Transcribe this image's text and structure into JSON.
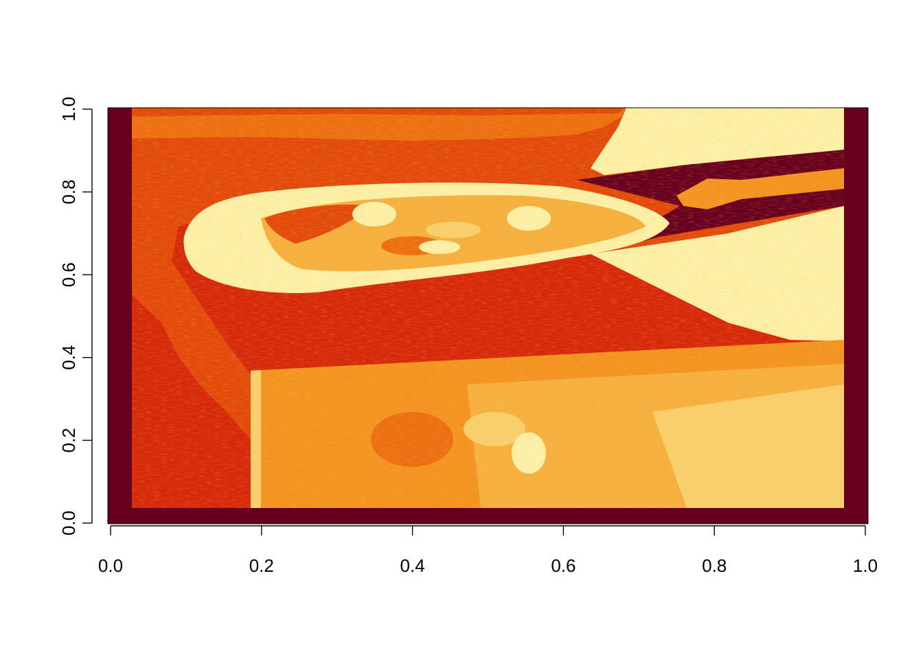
{
  "chart_data": {
    "type": "heatmap",
    "title": "",
    "xlabel": "",
    "ylabel": "",
    "xlim": [
      0,
      1
    ],
    "ylim": [
      0,
      1
    ],
    "x_ticks": [
      0.0,
      0.2,
      0.4,
      0.6,
      0.8,
      1.0
    ],
    "y_ticks": [
      0.0,
      0.2,
      0.4,
      0.6,
      0.8,
      1.0
    ],
    "x_tick_labels": [
      "0.0",
      "0.2",
      "0.4",
      "0.6",
      "0.8",
      "1.0"
    ],
    "y_tick_labels": [
      "0.0",
      "0.2",
      "0.4",
      "0.6",
      "0.8",
      "1.0"
    ],
    "colormap": "heat",
    "colors": {
      "border": "#67001f",
      "dark_red": "#b2182b",
      "red": "#d6290b",
      "red_orange": "#e24a0c",
      "orange": "#ec6f12",
      "light_orange": "#f39422",
      "amber": "#f6b040",
      "light_amber": "#f9cf6e",
      "pale": "#fdf0a8"
    },
    "grid": false,
    "legend": "none"
  }
}
